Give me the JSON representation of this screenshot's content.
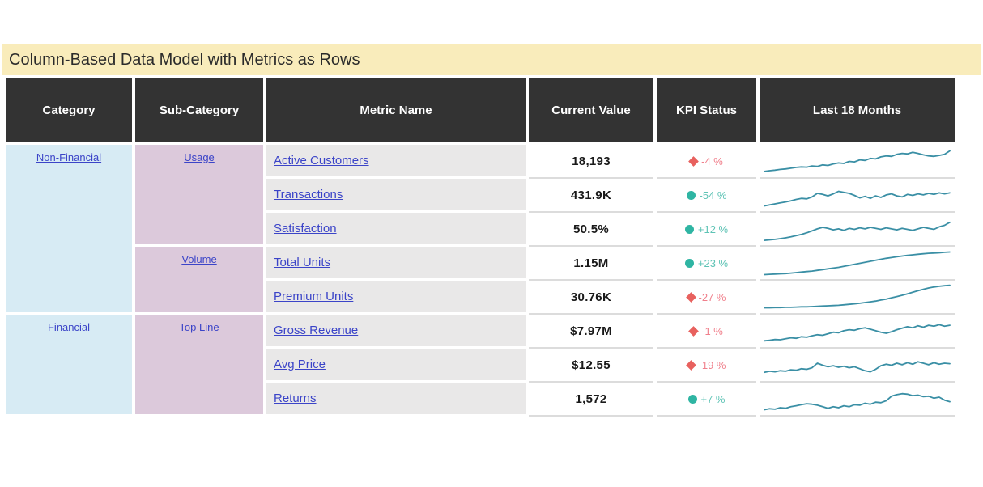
{
  "title": "Column-Based Data Model with Metrics as Rows",
  "colors": {
    "title_bg": "#F9ECBB",
    "header_bg": "#333333",
    "header_text": "#FFFFFF",
    "category_bg": "#D7EBF4",
    "subcategory_bg": "#DCC9DB",
    "metric_bg": "#E9E8E8",
    "link": "#3B44C8",
    "value_text": "#1A1A1A",
    "kpi_red_icon": "#E8615E",
    "kpi_red_text": "#F0808C",
    "kpi_teal_icon": "#2FB5A3",
    "kpi_teal_text": "#5EC3B5",
    "sparkline": "#3A8FA5"
  },
  "chart_data": {
    "type": "table",
    "title": "Column-Based Data Model with Metrics as Rows",
    "columns": [
      "Category",
      "Sub-Category",
      "Metric Name",
      "Current Value",
      "KPI Status",
      "Last 18 Months"
    ],
    "merged_categories": [
      {
        "label": "Non-Financial",
        "row_start": 1,
        "row_span": 5
      },
      {
        "label": "Financial",
        "row_start": 6,
        "row_span": 3
      }
    ],
    "merged_subcategories": [
      {
        "label": "Usage",
        "row_start": 1,
        "row_span": 3
      },
      {
        "label": "Volume",
        "row_start": 4,
        "row_span": 2
      },
      {
        "label": "Top Line",
        "row_start": 6,
        "row_span": 3
      }
    ],
    "sparkline_period": "Last 18 Months",
    "sparkline_scale": "normalized 0-100, estimated from pixel trace",
    "rows": [
      {
        "category": "Non-Financial",
        "sub_category": "Usage",
        "metric": "Active Customers",
        "current_value": "18,193",
        "kpi": {
          "shape": "diamond",
          "color": "red",
          "text": "-4 %"
        },
        "sparkline": [
          10,
          13,
          15,
          18,
          20,
          23,
          26,
          28,
          27,
          32,
          30,
          36,
          34,
          40,
          44,
          42,
          50,
          48,
          56,
          54,
          62,
          60,
          68,
          72,
          70,
          78,
          82,
          80,
          86,
          82,
          76,
          72,
          70,
          74,
          78,
          92
        ]
      },
      {
        "category": "Non-Financial",
        "sub_category": "Usage",
        "metric": "Transactions",
        "current_value": "431.9K",
        "kpi": {
          "shape": "circle",
          "color": "teal",
          "text": "-54 %"
        },
        "sparkline": [
          8,
          12,
          16,
          20,
          24,
          28,
          34,
          38,
          36,
          44,
          58,
          54,
          48,
          56,
          66,
          62,
          58,
          50,
          40,
          46,
          38,
          48,
          42,
          52,
          56,
          48,
          44,
          54,
          50,
          56,
          52,
          58,
          54,
          60,
          56,
          60
        ]
      },
      {
        "category": "Non-Financial",
        "sub_category": "Usage",
        "metric": "Satisfaction",
        "current_value": "50.5%",
        "kpi": {
          "shape": "circle",
          "color": "teal",
          "text": "+12 %"
        },
        "sparkline": [
          6,
          8,
          10,
          13,
          16,
          20,
          25,
          30,
          36,
          44,
          52,
          58,
          54,
          48,
          52,
          46,
          54,
          50,
          56,
          52,
          58,
          54,
          50,
          56,
          52,
          48,
          54,
          50,
          46,
          52,
          58,
          54,
          50,
          60,
          66,
          78
        ]
      },
      {
        "category": "Non-Financial",
        "sub_category": "Volume",
        "metric": "Total Units",
        "current_value": "1.15M",
        "kpi": {
          "shape": "circle",
          "color": "teal",
          "text": "+23 %"
        },
        "sparkline": [
          5,
          6,
          7,
          8,
          9,
          11,
          13,
          15,
          17,
          19,
          22,
          25,
          28,
          31,
          34,
          38,
          42,
          46,
          50,
          54,
          58,
          62,
          66,
          70,
          73,
          76,
          79,
          82,
          84,
          86,
          88,
          90,
          91,
          92,
          94,
          95
        ]
      },
      {
        "category": "Non-Financial",
        "sub_category": "Volume",
        "metric": "Premium Units",
        "current_value": "30.76K",
        "kpi": {
          "shape": "diamond",
          "color": "red",
          "text": "-27 %"
        },
        "sparkline": [
          8,
          8,
          9,
          9,
          10,
          10,
          11,
          12,
          12,
          13,
          14,
          15,
          16,
          17,
          18,
          20,
          22,
          24,
          26,
          29,
          32,
          35,
          39,
          43,
          48,
          53,
          58,
          64,
          70,
          76,
          82,
          87,
          91,
          94,
          96,
          98
        ]
      },
      {
        "category": "Financial",
        "sub_category": "Top Line",
        "metric": "Gross Revenue",
        "current_value": "$7.97M",
        "kpi": {
          "shape": "diamond",
          "color": "red",
          "text": "-1 %"
        },
        "sparkline": [
          12,
          14,
          17,
          16,
          20,
          24,
          22,
          28,
          26,
          32,
          36,
          34,
          40,
          46,
          44,
          52,
          56,
          54,
          60,
          64,
          58,
          52,
          46,
          42,
          48,
          56,
          62,
          68,
          64,
          72,
          66,
          74,
          70,
          76,
          70,
          74
        ]
      },
      {
        "category": "Financial",
        "sub_category": "Top Line",
        "metric": "Avg Price",
        "current_value": "$12.55",
        "kpi": {
          "shape": "diamond",
          "color": "red",
          "text": "-19 %"
        },
        "sparkline": [
          22,
          26,
          24,
          28,
          26,
          32,
          30,
          36,
          34,
          40,
          58,
          50,
          44,
          48,
          42,
          46,
          40,
          44,
          36,
          28,
          24,
          34,
          48,
          54,
          50,
          58,
          52,
          60,
          54,
          64,
          58,
          52,
          60,
          54,
          58,
          56
        ]
      },
      {
        "category": "Financial",
        "sub_category": "Top Line",
        "metric": "Returns",
        "current_value": "1,572",
        "kpi": {
          "shape": "circle",
          "color": "teal",
          "text": "+7 %"
        },
        "sparkline": [
          8,
          12,
          10,
          16,
          14,
          20,
          24,
          28,
          32,
          30,
          26,
          20,
          14,
          20,
          16,
          24,
          20,
          28,
          26,
          34,
          30,
          38,
          36,
          44,
          62,
          68,
          72,
          70,
          64,
          66,
          60,
          62,
          54,
          58,
          46,
          40
        ]
      }
    ]
  }
}
